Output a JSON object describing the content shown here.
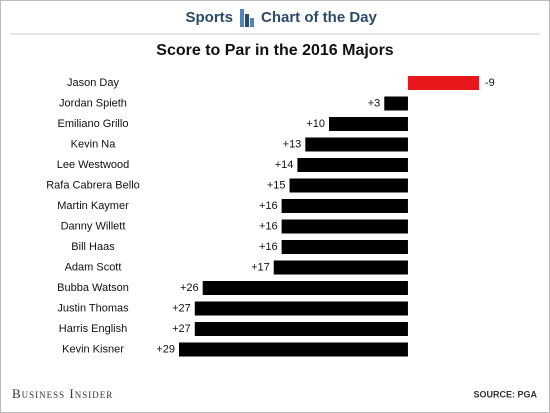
{
  "header": {
    "section": "Sports",
    "series_name": "Chart of the Day"
  },
  "chart_data": {
    "type": "bar",
    "orientation": "horizontal",
    "reversed": true,
    "title": "Score to Par in the 2016 Majors",
    "categories": [
      "Jason Day",
      "Jordan Spieth",
      "Emiliano Grillo",
      "Kevin Na",
      "Lee Westwood",
      "Rafa Cabrera Bello",
      "Martin Kaymer",
      "Danny Willett",
      "Bill Haas",
      "Adam Scott",
      "Bubba Watson",
      "Justin Thomas",
      "Harris English",
      "Kevin Kisner"
    ],
    "values": [
      -9,
      3,
      10,
      13,
      14,
      15,
      16,
      16,
      16,
      17,
      26,
      27,
      27,
      29
    ],
    "value_labels": [
      "-9",
      "+3",
      "+10",
      "+13",
      "+14",
      "+15",
      "+16",
      "+16",
      "+16",
      "+17",
      "+26",
      "+27",
      "+27",
      "+29"
    ],
    "colors": [
      "#e8171b",
      "#000000",
      "#000000",
      "#000000",
      "#000000",
      "#000000",
      "#000000",
      "#000000",
      "#000000",
      "#000000",
      "#000000",
      "#000000",
      "#000000",
      "#000000"
    ]
  },
  "footer": {
    "brand": "Business Insider",
    "source": "SOURCE: PGA"
  }
}
